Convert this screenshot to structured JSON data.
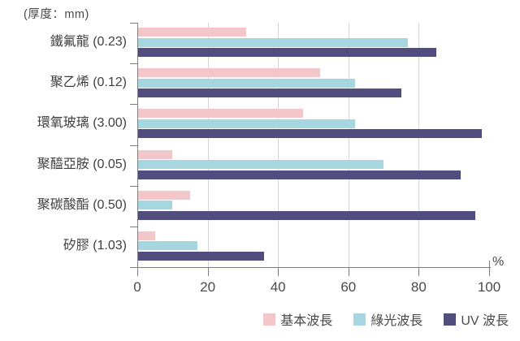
{
  "chart_data": {
    "type": "bar",
    "orientation": "horizontal",
    "title_note": "(厚度：mm)",
    "unit_label": "%",
    "categories": [
      "鐵氟龍 (0.23)",
      "聚乙烯 (0.12)",
      "環氧玻璃 (3.00)",
      "聚醯亞胺 (0.05)",
      "聚碳酸酯 (0.50)",
      "矽膠 (1.03)"
    ],
    "series": [
      {
        "name": "基本波長",
        "color": "#f3c6ca",
        "values": [
          31,
          52,
          47,
          10,
          15,
          5
        ]
      },
      {
        "name": "綠光波長",
        "color": "#a6d7e1",
        "values": [
          77,
          62,
          62,
          70,
          10,
          17
        ]
      },
      {
        "name": "UV 波長",
        "color": "#514d7e",
        "values": [
          85,
          75,
          98,
          92,
          96,
          36
        ]
      }
    ],
    "x_axis": {
      "min": 0,
      "max": 100,
      "ticks": [
        0,
        20,
        40,
        60,
        80,
        100
      ],
      "gridlines_at": [
        20,
        40,
        60,
        80
      ]
    },
    "legend_position": "bottom-right",
    "colors": {
      "axis": "#7f7f7f",
      "grid": "#d6d6d6",
      "text": "#3f3f3f"
    }
  }
}
